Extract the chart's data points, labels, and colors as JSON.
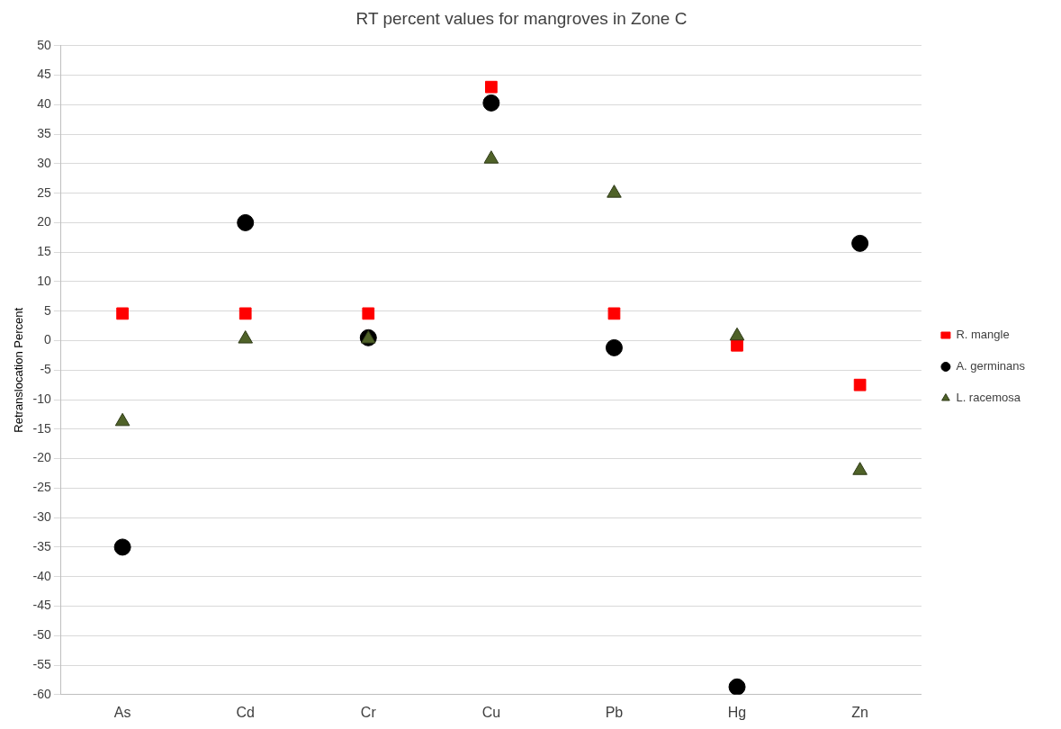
{
  "chart_data": {
    "type": "scatter",
    "title": "RT percent values for mangroves in Zone C",
    "ylabel": "Retranslocation Percent",
    "categories": [
      "As",
      "Cd",
      "Cr",
      "Cu",
      "Pb",
      "Hg",
      "Zn"
    ],
    "series": [
      {
        "name": "R. mangle",
        "color": "#ff0000",
        "marker": "square",
        "values": [
          4.6,
          4.6,
          4.6,
          43,
          4.6,
          -0.8,
          -7.5
        ]
      },
      {
        "name": "A. germinans",
        "color": "#000000",
        "marker": "circle",
        "values": [
          -35,
          20,
          0.5,
          40.3,
          -1.2,
          -58.7,
          16.5
        ]
      },
      {
        "name": "L. racemosa",
        "color": "#4f6228",
        "marker": "triangle",
        "values": [
          -13.7,
          0.3,
          0.3,
          30.8,
          25,
          0.8,
          -22
        ]
      }
    ],
    "ylim": [
      -60,
      50
    ],
    "yticks": [
      -60,
      -55,
      -50,
      -45,
      -40,
      -35,
      -30,
      -25,
      -20,
      -15,
      -10,
      -5,
      0,
      5,
      10,
      15,
      20,
      25,
      30,
      35,
      40,
      45,
      50
    ],
    "grid": "y",
    "legend": "right"
  }
}
